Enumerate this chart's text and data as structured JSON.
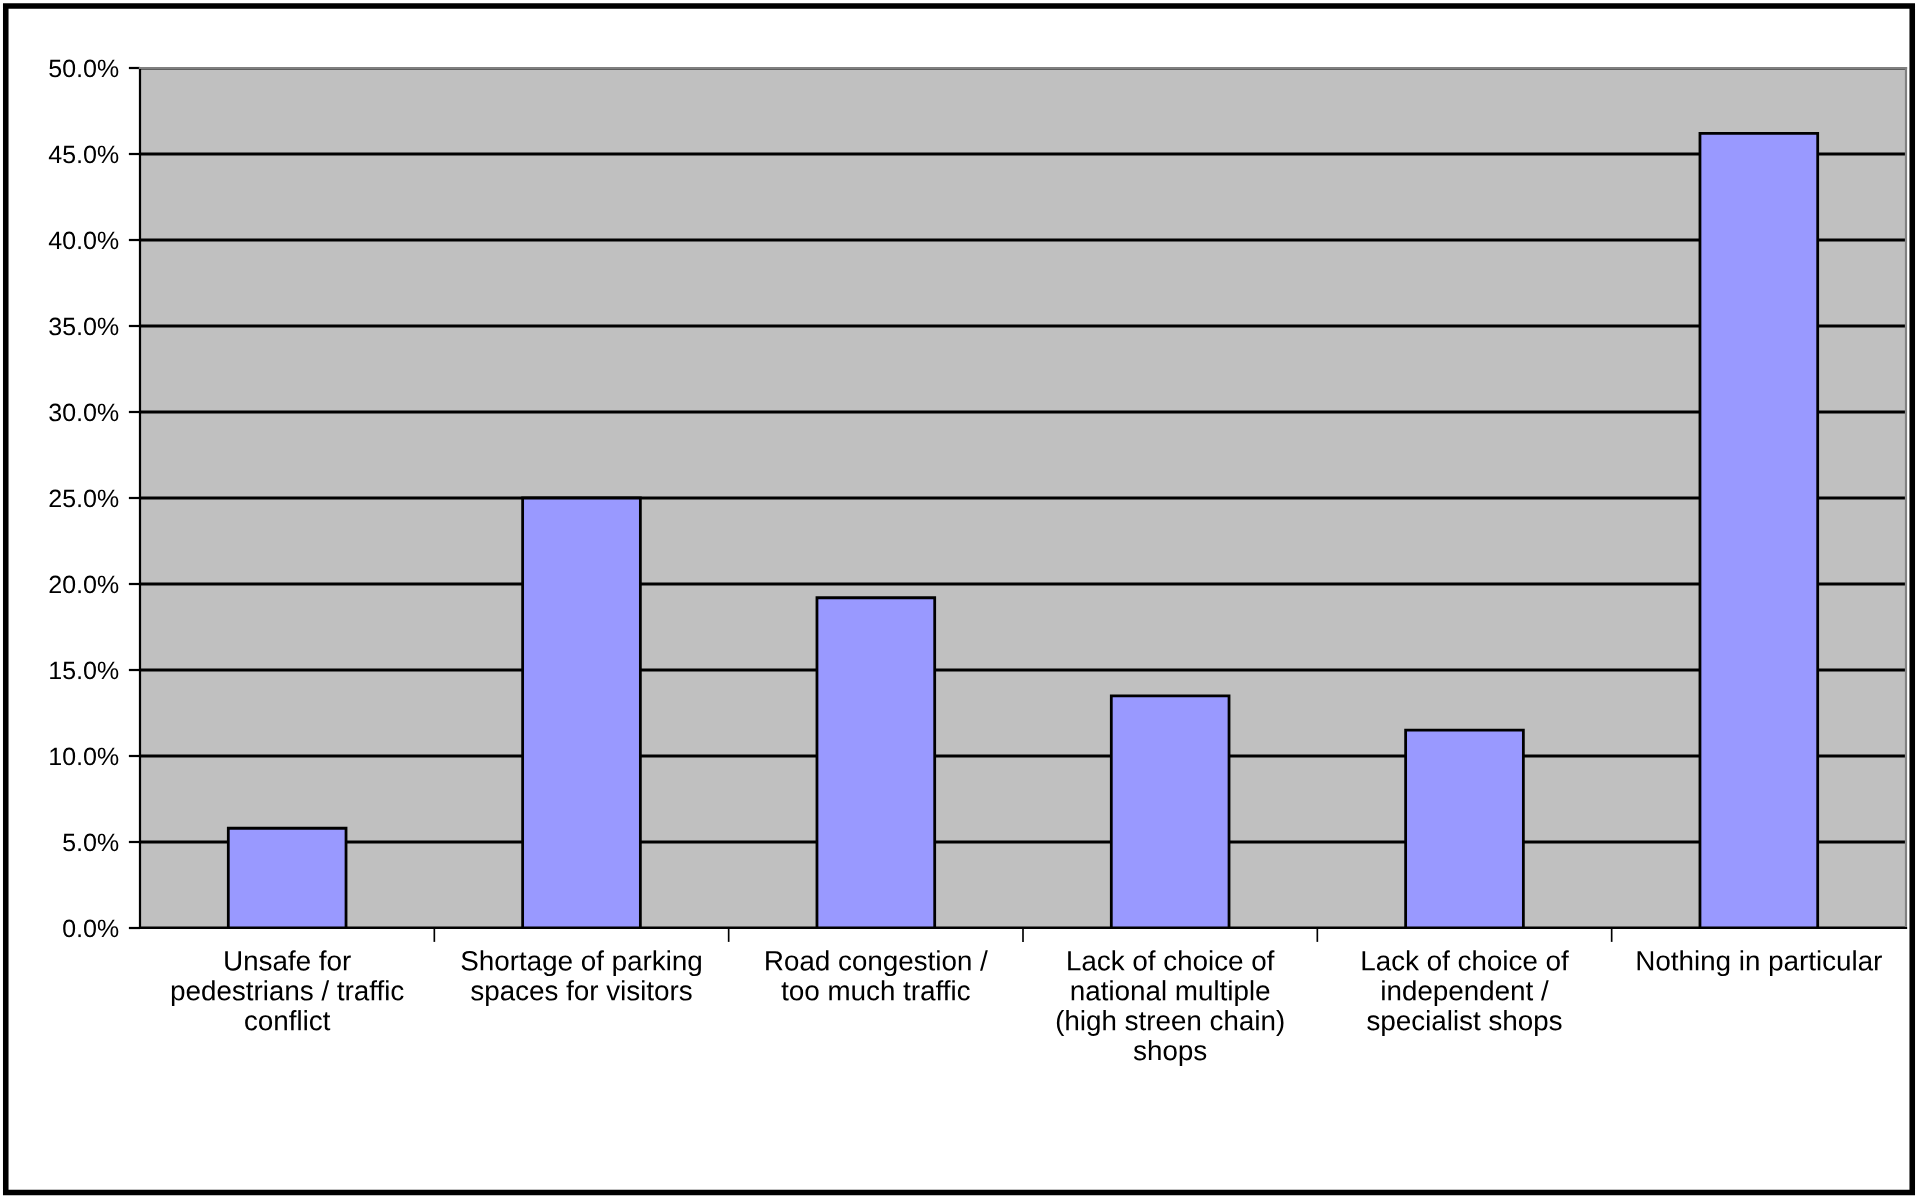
{
  "chart_data": {
    "type": "bar",
    "categories": [
      "Unsafe for\npedestrians / traffic\nconflict",
      "Shortage of parking\nspaces for visitors",
      "Road congestion /\ntoo much traffic",
      "Lack of choice of\nnational multiple\n(high streen chain)\nshops",
      "Lack of choice of\nindependent /\nspecialist shops",
      "Nothing in particular"
    ],
    "values": [
      5.8,
      25.0,
      19.2,
      13.5,
      11.5,
      46.2
    ],
    "color": "#9999ff",
    "ylim": [
      0,
      50
    ],
    "yticks": [
      {
        "value": 0,
        "label": "0.0%"
      },
      {
        "value": 5,
        "label": "5.0%"
      },
      {
        "value": 10,
        "label": "10.0%"
      },
      {
        "value": 15,
        "label": "15.0%"
      },
      {
        "value": 20,
        "label": "20.0%"
      },
      {
        "value": 25,
        "label": "25.0%"
      },
      {
        "value": 30,
        "label": "30.0%"
      },
      {
        "value": 35,
        "label": "35.0%"
      },
      {
        "value": 40,
        "label": "40.0%"
      },
      {
        "value": 45,
        "label": "45.0%"
      },
      {
        "value": 50,
        "label": "50.0%"
      }
    ],
    "grid": "y"
  }
}
